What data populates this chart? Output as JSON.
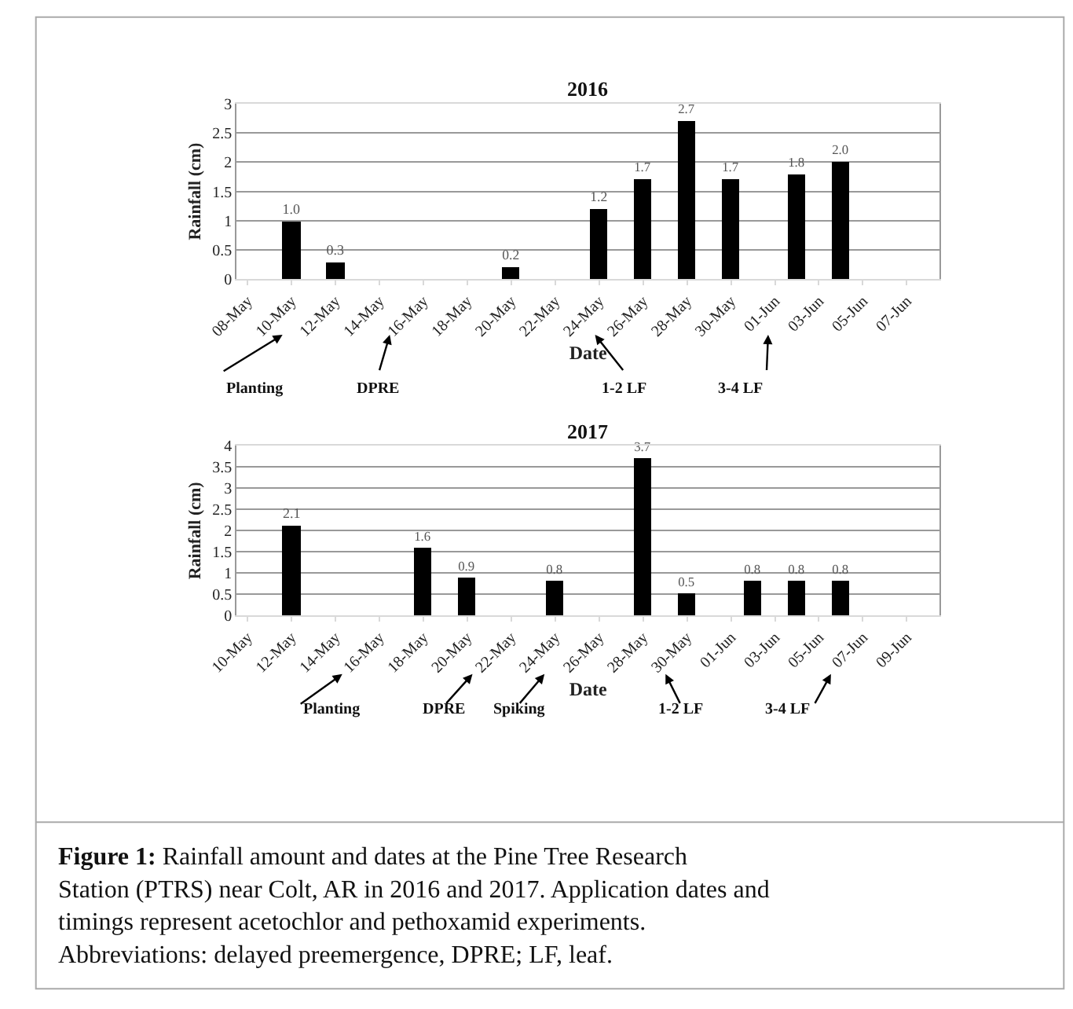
{
  "chart_data": [
    {
      "type": "bar",
      "title": "2016",
      "xlabel": "Date",
      "ylabel": "Rainfall (cm)",
      "x": [
        "2016-05-10",
        "2016-05-12",
        "2016-05-20",
        "2016-05-24",
        "2016-05-26",
        "2016-05-28",
        "2016-05-30",
        "2016-06-02",
        "2016-06-04"
      ],
      "values": [
        1.0,
        0.3,
        0.2,
        1.2,
        1.7,
        2.7,
        1.7,
        1.8,
        2.0
      ],
      "value_labels": [
        "1.0",
        "0.3",
        "0.2",
        "1.2",
        "1.7",
        "2.7",
        "1.7",
        "1.8",
        "2.0"
      ],
      "color": "#000000",
      "xlim": [
        "2016-05-07T12:00",
        "2016-06-08T12:00"
      ],
      "xticks": [
        {
          "value": "2016-05-08",
          "label": "08-May"
        },
        {
          "value": "2016-05-10",
          "label": "10-May"
        },
        {
          "value": "2016-05-12",
          "label": "12-May"
        },
        {
          "value": "2016-05-14",
          "label": "14-May"
        },
        {
          "value": "2016-05-16",
          "label": "16-May"
        },
        {
          "value": "2016-05-18",
          "label": "18-May"
        },
        {
          "value": "2016-05-20",
          "label": "20-May"
        },
        {
          "value": "2016-05-22",
          "label": "22-May"
        },
        {
          "value": "2016-05-24",
          "label": "24-May"
        },
        {
          "value": "2016-05-26",
          "label": "26-May"
        },
        {
          "value": "2016-05-28",
          "label": "28-May"
        },
        {
          "value": "2016-05-30",
          "label": "30-May"
        },
        {
          "value": "2016-06-01",
          "label": "01-Jun"
        },
        {
          "value": "2016-06-03",
          "label": "03-Jun"
        },
        {
          "value": "2016-06-05",
          "label": "05-Jun"
        },
        {
          "value": "2016-06-07",
          "label": "07-Jun"
        }
      ],
      "ylim": [
        0,
        3
      ],
      "yticks": [
        0,
        0.5,
        1,
        1.5,
        2,
        2.5,
        3
      ],
      "grid": "y",
      "annotations": [
        "Planting",
        "DPRE",
        "1-2 LF",
        "3-4 LF"
      ]
    },
    {
      "type": "bar",
      "title": "2017",
      "xlabel": "Date",
      "ylabel": "Rainfall (cm)",
      "x": [
        "2017-05-12",
        "2017-05-18",
        "2017-05-20",
        "2017-05-24",
        "2017-05-28",
        "2017-05-30",
        "2017-06-02",
        "2017-06-04",
        "2017-06-06"
      ],
      "values": [
        2.1,
        1.6,
        0.9,
        0.8,
        3.7,
        0.5,
        0.8,
        0.8,
        0.8
      ],
      "value_labels": [
        "2.1",
        "1.6",
        "0.9",
        "0.8",
        "3.7",
        "0.5",
        "0.8",
        "0.8",
        "0.8"
      ],
      "color": "#000000",
      "xlim": [
        "2017-05-09T12:00",
        "2017-06-10T12:00"
      ],
      "xticks": [
        {
          "value": "2017-05-10",
          "label": "10-May"
        },
        {
          "value": "2017-05-12",
          "label": "12-May"
        },
        {
          "value": "2017-05-14",
          "label": "14-May"
        },
        {
          "value": "2017-05-16",
          "label": "16-May"
        },
        {
          "value": "2017-05-18",
          "label": "18-May"
        },
        {
          "value": "2017-05-20",
          "label": "20-May"
        },
        {
          "value": "2017-05-22",
          "label": "22-May"
        },
        {
          "value": "2017-05-24",
          "label": "24-May"
        },
        {
          "value": "2017-05-26",
          "label": "26-May"
        },
        {
          "value": "2017-05-28",
          "label": "28-May"
        },
        {
          "value": "2017-05-30",
          "label": "30-May"
        },
        {
          "value": "2017-06-01",
          "label": "01-Jun"
        },
        {
          "value": "2017-06-03",
          "label": "03-Jun"
        },
        {
          "value": "2017-06-05",
          "label": "05-Jun"
        },
        {
          "value": "2017-06-07",
          "label": "07-Jun"
        },
        {
          "value": "2017-06-09",
          "label": "09-Jun"
        }
      ],
      "ylim": [
        0,
        4
      ],
      "yticks": [
        0,
        0.5,
        1,
        1.5,
        2,
        2.5,
        3,
        3.5,
        4
      ],
      "grid": "y",
      "annotations": [
        "Planting",
        "DPRE",
        "Spiking",
        "1-2 LF",
        "3-4 LF",
        "**Figure 1:** Rainfall amount and dates at the Pine Tree Research Station (PTRS) near Colt, AR in 2016 and 2017. Application dates and timings represent acetochlor and pethoxamid experiments. Abbreviations: delayed preemergence, DPRE; LF, leaf."
      ]
    }
  ]
}
